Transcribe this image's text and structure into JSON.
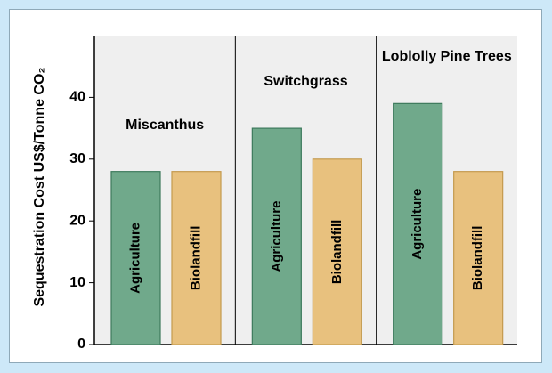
{
  "chart_data": {
    "type": "bar",
    "ylabel": "Sequestration Cost US$/Tonne CO₂",
    "categories": [
      "Miscanthus",
      "Switchgrass",
      "Loblolly Pine Trees"
    ],
    "series": [
      {
        "name": "Agriculture",
        "color": "#70a98b",
        "values": [
          28,
          35,
          39
        ]
      },
      {
        "name": "Biolandfill",
        "color": "#e8c17e",
        "values": [
          28,
          30,
          28
        ]
      }
    ],
    "ylim": [
      0,
      50
    ],
    "yticks": [
      0,
      10,
      20,
      30,
      40
    ]
  }
}
